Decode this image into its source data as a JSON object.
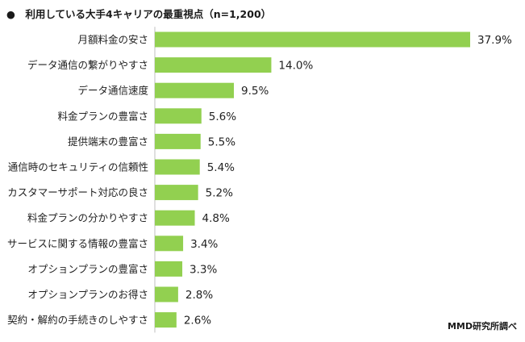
{
  "title": "●　利用している大手4キャリアの最重視点（n=1,200）",
  "source": "MMD研究所調べ",
  "bar_color": "#92d050",
  "chart_data": {
    "type": "bar",
    "orientation": "horizontal",
    "title": "●　利用している大手4キャリアの最重視点（n=1,200）",
    "categories": [
      "月額料金の安さ",
      "データ通信の繋がりやすさ",
      "データ通信速度",
      "料金プランの豊富さ",
      "提供端末の豊富さ",
      "通信時のセキュリティの信頼性",
      "カスタマーサポート対応の良さ",
      "料金プランの分かりやすさ",
      "サービスに関する情報の豊富さ",
      "オプションプランの豊富さ",
      "オプションプランのお得さ",
      "契約・解約の手続きのしやすさ"
    ],
    "values": [
      37.9,
      14.0,
      9.5,
      5.6,
      5.5,
      5.4,
      5.2,
      4.8,
      3.4,
      3.3,
      2.8,
      2.6
    ],
    "value_labels": [
      "37.9%",
      "14.0%",
      "9.5%",
      "5.6%",
      "5.5%",
      "5.4%",
      "5.2%",
      "4.8%",
      "3.4%",
      "3.3%",
      "2.8%",
      "2.6%"
    ],
    "unit": "%",
    "xlim": [
      0,
      40
    ],
    "grid": false,
    "legend": "none"
  }
}
